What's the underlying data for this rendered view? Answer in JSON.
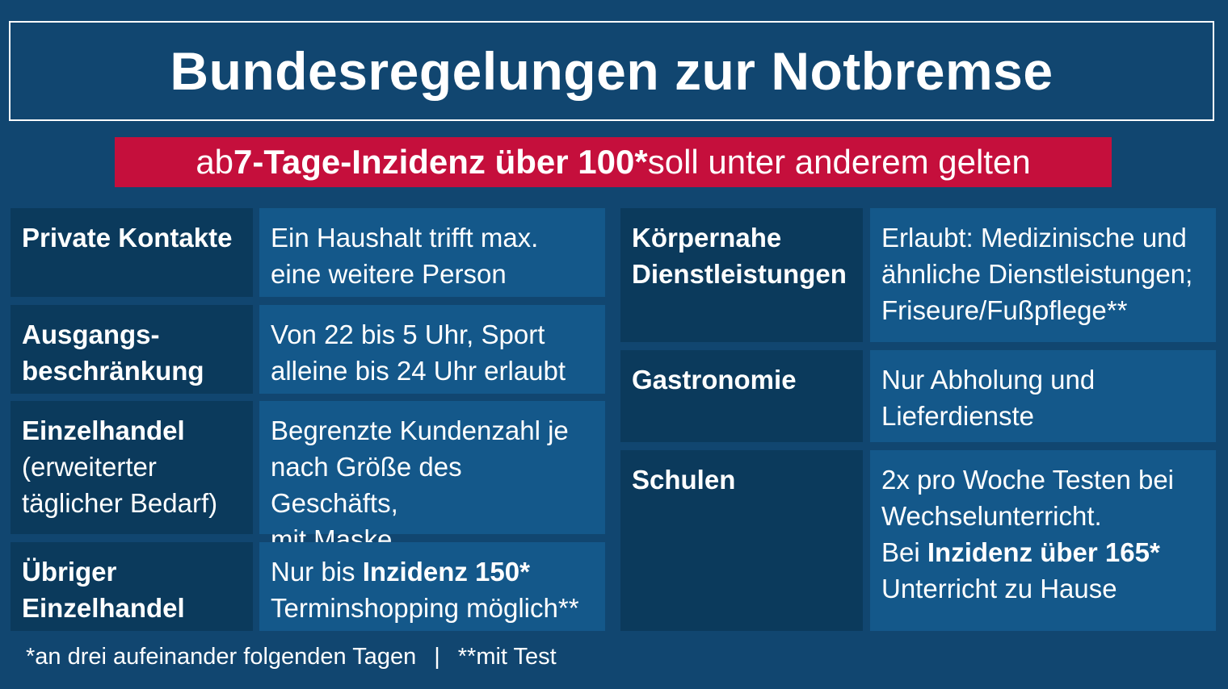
{
  "title": "Bundesregelungen zur Notbremse",
  "subtitle": {
    "prefix": "ab ",
    "bold": "7-Tage-Inzidenz über 100*",
    "suffix": " soll unter anderem gelten"
  },
  "rules_left": [
    {
      "label": "Private Kontakte",
      "value_line1": "Ein Haushalt trifft max.",
      "value_line2": "eine weitere Person"
    },
    {
      "label_line1": "Ausgangs-",
      "label_line2": "beschränkung",
      "value_line1": "Von 22 bis 5 Uhr, Sport",
      "value_line2": "alleine bis 24 Uhr erlaubt"
    },
    {
      "label": "Einzelhandel",
      "label_sub_line1": "(erweiterter",
      "label_sub_line2": "täglicher Bedarf)",
      "value_line1": "Begrenzte Kundenzahl je",
      "value_line2": "nach Größe des Geschäfts,",
      "value_line3": "mit Maske"
    },
    {
      "label_line1": "Übriger",
      "label_line2": "Einzelhandel",
      "value_prefix": "Nur bis ",
      "value_bold": "Inzidenz 150*",
      "value_line2": "Terminshopping möglich**"
    }
  ],
  "rules_right": [
    {
      "label_line1": "Körpernahe",
      "label_line2": "Dienstleistungen",
      "value_line1": "Erlaubt: Medizinische und",
      "value_line2": "ähnliche Dienstleistungen;",
      "value_line3": "Friseure/Fußpflege**"
    },
    {
      "label": "Gastronomie",
      "value_line1": "Nur Abholung und",
      "value_line2": "Lieferdienste"
    },
    {
      "label": "Schulen",
      "value_line1": "2x pro Woche Testen bei",
      "value_line2": "Wechselunterricht.",
      "value_prefix": "Bei ",
      "value_bold": "Inzidenz über 165*",
      "value_line4": "Unterricht zu Hause"
    }
  ],
  "footer": {
    "note1": "*an drei aufeinander folgenden Tagen",
    "separator": "|",
    "note2": "**mit Test"
  },
  "colors": {
    "background": "#114670",
    "label_cell": "#0b3a5c",
    "value_cell": "#14588a",
    "subtitle_bar": "#c50f3c"
  }
}
